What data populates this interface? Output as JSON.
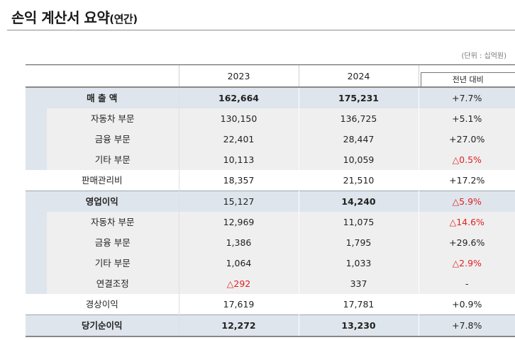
{
  "title": {
    "main": "손익 계산서 요약",
    "paren": "(연간)"
  },
  "unit": "(단위 : 십억원)",
  "header": {
    "y2023": "2023",
    "y2024": "2024",
    "change": "전년 대비"
  },
  "rows": [
    {
      "label": "매 출 액",
      "v2023": "162,664",
      "v2024": "175,231",
      "change": "+7.7%"
    },
    {
      "label": "자동차 부문",
      "v2023": "130,150",
      "v2024": "136,725",
      "change": "+5.1%"
    },
    {
      "label": "금융 부문",
      "v2023": "22,401",
      "v2024": "28,447",
      "change": "+27.0%"
    },
    {
      "label": "기타 부문",
      "v2023": "10,113",
      "v2024": "10,059",
      "change": "△0.5%"
    },
    {
      "label": "판매관리비",
      "v2023": "18,357",
      "v2024": "21,510",
      "change": "+17.2%"
    },
    {
      "label": "영업이익",
      "v2023": "15,127",
      "v2024": "14,240",
      "change": "△5.9%"
    },
    {
      "label": "자동차 부문",
      "v2023": "12,969",
      "v2024": "11,075",
      "change": "△14.6%"
    },
    {
      "label": "금융 부문",
      "v2023": "1,386",
      "v2024": "1,795",
      "change": "+29.6%"
    },
    {
      "label": "기타 부문",
      "v2023": "1,064",
      "v2024": "1,033",
      "change": "△2.9%"
    },
    {
      "label": "연결조정",
      "v2023": "△292",
      "v2024": "337",
      "change": "-"
    },
    {
      "label": "경상이익",
      "v2023": "17,619",
      "v2024": "17,781",
      "change": "+0.9%"
    },
    {
      "label": "당기순이익",
      "v2023": "12,272",
      "v2024": "13,230",
      "change": "+7.8%"
    }
  ],
  "colors": {
    "negative": "#e02020",
    "section_shade": "#dfe5ec",
    "sub_shade": "#efefef"
  }
}
